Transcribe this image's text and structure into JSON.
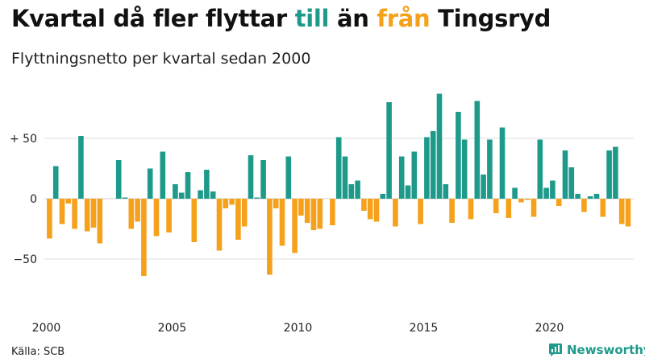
{
  "title": {
    "part1": "Kvartal då fler flyttar ",
    "highlight_in": "till",
    "part2": " än ",
    "highlight_out": "från",
    "part3": " Tingsryd"
  },
  "subtitle": "Flyttningsnetto per kvartal sedan 2000",
  "source": "Källa: SCB",
  "brand": {
    "name": "Newsworthy",
    "icon": "newsworthy-chart-icon"
  },
  "colors": {
    "positive": "#1e9a8a",
    "negative": "#f5a11b",
    "grid": "#dddddd",
    "zero": "#cfcfcf"
  },
  "chart_data": {
    "type": "bar",
    "title": "Flyttningsnetto per kvartal sedan 2000",
    "start": {
      "year": 2000,
      "quarter": 1
    },
    "xticks": [
      2000,
      2005,
      2010,
      2015,
      2020
    ],
    "xtick_labels": [
      "2000",
      "2005",
      "2010",
      "2015",
      "2020"
    ],
    "yticks": [
      50,
      0,
      -50
    ],
    "ytick_labels": [
      "+ 50",
      "0",
      "−50"
    ],
    "ylim": [
      -90,
      90
    ],
    "grid": true,
    "values": [
      -33,
      27,
      -21,
      -4,
      -25,
      52,
      -27,
      -24,
      -37,
      0,
      0,
      32,
      1,
      -25,
      -19,
      -64,
      25,
      -31,
      39,
      -28,
      12,
      5,
      22,
      -36,
      7,
      24,
      6,
      -43,
      -8,
      -5,
      -34,
      -23,
      36,
      1,
      32,
      -63,
      -8,
      -39,
      35,
      -45,
      -14,
      -20,
      -26,
      -25,
      0,
      -22,
      51,
      35,
      12,
      15,
      -10,
      -17,
      -19,
      4,
      80,
      -23,
      35,
      11,
      39,
      -21,
      51,
      56,
      87,
      12,
      -20,
      72,
      49,
      -17,
      81,
      20,
      49,
      -12,
      59,
      -16,
      9,
      -3,
      -1,
      -15,
      49,
      9,
      15,
      -6,
      40,
      26,
      4,
      -11,
      2,
      4,
      -15,
      40,
      43,
      -21,
      -23
    ]
  }
}
